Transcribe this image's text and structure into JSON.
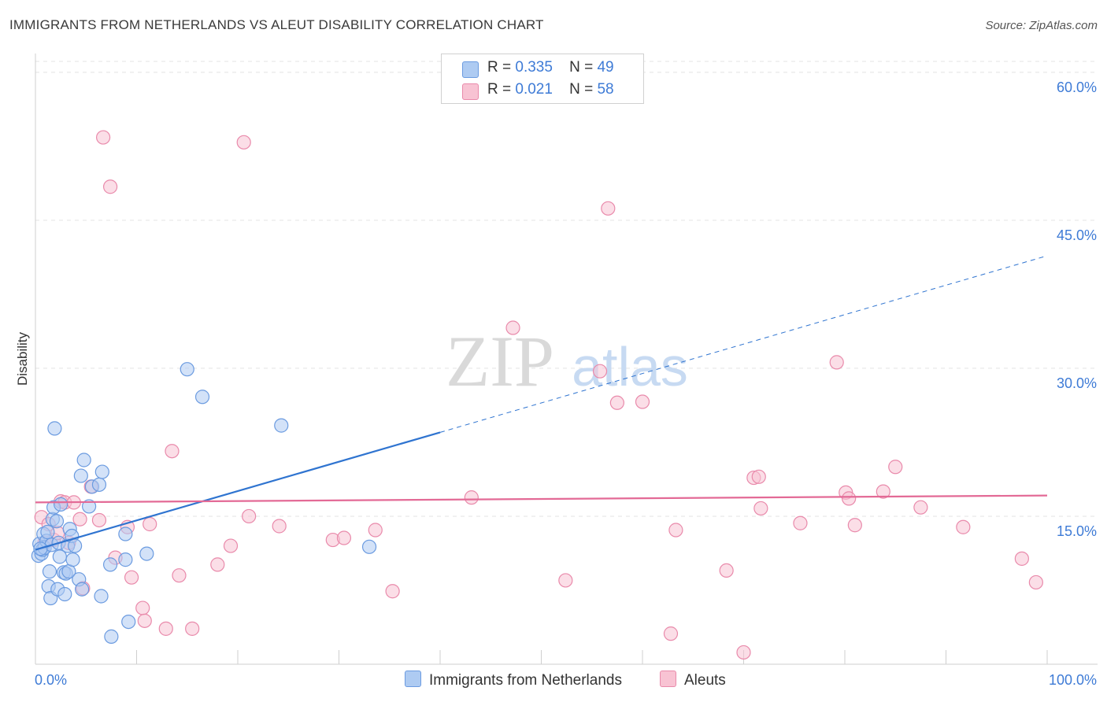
{
  "title": "IMMIGRANTS FROM NETHERLANDS VS ALEUT DISABILITY CORRELATION CHART",
  "source": "Source: ZipAtlas.com",
  "watermark": {
    "zip": "ZIP",
    "atlas": "atlas"
  },
  "legend": {
    "r_label": "R =",
    "n_label": "N =",
    "series1": {
      "r": "0.335",
      "n": "49"
    },
    "series2": {
      "r": "0.021",
      "n": "58"
    }
  },
  "colors": {
    "blue_fill": "#aecbf2",
    "blue_stroke": "#6b9be0",
    "blue_line": "#2f74d0",
    "pink_fill": "#f8c3d3",
    "pink_stroke": "#e98aab",
    "pink_line": "#e36a96",
    "axis_label": "#3e7bd6",
    "grid": "#e3e3e3"
  },
  "chart_data": {
    "type": "scatter",
    "title": "IMMIGRANTS FROM NETHERLANDS VS ALEUT DISABILITY CORRELATION CHART",
    "xlabel": "",
    "ylabel": "Disability",
    "xlim": [
      0,
      100
    ],
    "ylim": [
      0,
      61.9
    ],
    "x_tick_labels": [
      "0.0%",
      "100.0%"
    ],
    "y_ticks": [
      15,
      30,
      45,
      60
    ],
    "y_tick_labels": [
      "15.0%",
      "30.0%",
      "45.0%",
      "60.0%"
    ],
    "series": [
      {
        "name": "Immigrants from Netherlands",
        "r": 0.335,
        "n": 49,
        "trend": {
          "x0": 0,
          "y0": 11.6,
          "x1": 40,
          "y1": 23.5,
          "dash_x1": 100,
          "dash_y1": 41.4
        },
        "points": [
          [
            0.3,
            11.0
          ],
          [
            0.4,
            12.2
          ],
          [
            0.6,
            11.2
          ],
          [
            0.7,
            11.6
          ],
          [
            0.8,
            13.2
          ],
          [
            0.9,
            11.8
          ],
          [
            1.1,
            12.5
          ],
          [
            1.2,
            13.4
          ],
          [
            1.3,
            7.9
          ],
          [
            1.4,
            9.4
          ],
          [
            1.5,
            6.7
          ],
          [
            1.6,
            12.1
          ],
          [
            1.7,
            14.7
          ],
          [
            1.8,
            15.9
          ],
          [
            1.9,
            23.9
          ],
          [
            2.1,
            14.5
          ],
          [
            2.2,
            7.6
          ],
          [
            2.3,
            12.3
          ],
          [
            2.4,
            10.9
          ],
          [
            2.5,
            16.2
          ],
          [
            2.8,
            9.3
          ],
          [
            2.9,
            7.1
          ],
          [
            3.0,
            9.2
          ],
          [
            3.2,
            12.0
          ],
          [
            3.3,
            9.4
          ],
          [
            3.4,
            13.7
          ],
          [
            3.6,
            13.0
          ],
          [
            3.7,
            10.6
          ],
          [
            3.9,
            12.0
          ],
          [
            4.3,
            8.6
          ],
          [
            4.5,
            19.1
          ],
          [
            4.6,
            7.6
          ],
          [
            4.8,
            20.7
          ],
          [
            5.3,
            16.0
          ],
          [
            5.6,
            18.0
          ],
          [
            6.3,
            18.2
          ],
          [
            6.5,
            6.9
          ],
          [
            6.6,
            19.5
          ],
          [
            7.4,
            10.1
          ],
          [
            7.5,
            2.8
          ],
          [
            8.9,
            10.6
          ],
          [
            8.9,
            13.2
          ],
          [
            9.2,
            4.3
          ],
          [
            11.0,
            11.2
          ],
          [
            15.0,
            29.9
          ],
          [
            16.5,
            27.1
          ],
          [
            24.3,
            24.2
          ],
          [
            33.0,
            11.9
          ],
          [
            0.5,
            11.7
          ]
        ]
      },
      {
        "name": "Aleuts",
        "r": 0.021,
        "n": 58,
        "trend": {
          "x0": 0,
          "y0": 16.4,
          "x1": 100,
          "y1": 17.1
        },
        "points": [
          [
            0.6,
            14.9
          ],
          [
            0.9,
            12.3
          ],
          [
            1.3,
            14.2
          ],
          [
            1.8,
            12.6
          ],
          [
            2.2,
            13.3
          ],
          [
            2.5,
            16.5
          ],
          [
            2.9,
            16.4
          ],
          [
            3.3,
            12.3
          ],
          [
            3.8,
            16.4
          ],
          [
            4.4,
            14.7
          ],
          [
            4.7,
            7.7
          ],
          [
            5.5,
            18.0
          ],
          [
            6.3,
            14.6
          ],
          [
            6.7,
            53.4
          ],
          [
            7.4,
            48.4
          ],
          [
            7.9,
            10.8
          ],
          [
            9.1,
            13.9
          ],
          [
            9.5,
            8.8
          ],
          [
            10.6,
            5.7
          ],
          [
            10.8,
            4.4
          ],
          [
            11.3,
            14.2
          ],
          [
            12.9,
            3.6
          ],
          [
            13.5,
            21.6
          ],
          [
            14.2,
            9.0
          ],
          [
            15.5,
            3.6
          ],
          [
            18.0,
            10.1
          ],
          [
            19.3,
            12.0
          ],
          [
            20.6,
            52.9
          ],
          [
            21.1,
            15.0
          ],
          [
            24.1,
            14.0
          ],
          [
            29.4,
            12.6
          ],
          [
            30.5,
            12.8
          ],
          [
            33.6,
            13.6
          ],
          [
            35.3,
            7.4
          ],
          [
            43.1,
            16.9
          ],
          [
            47.2,
            34.1
          ],
          [
            52.4,
            8.5
          ],
          [
            55.8,
            29.7
          ],
          [
            56.6,
            46.2
          ],
          [
            57.5,
            26.5
          ],
          [
            60.0,
            26.6
          ],
          [
            62.8,
            3.1
          ],
          [
            63.3,
            13.6
          ],
          [
            68.3,
            9.5
          ],
          [
            70.0,
            1.2
          ],
          [
            71.0,
            18.9
          ],
          [
            71.5,
            19.0
          ],
          [
            71.7,
            15.8
          ],
          [
            75.6,
            14.3
          ],
          [
            79.2,
            30.6
          ],
          [
            80.1,
            17.4
          ],
          [
            80.4,
            16.8
          ],
          [
            81.0,
            14.1
          ],
          [
            83.8,
            17.5
          ],
          [
            85.0,
            20.0
          ],
          [
            87.5,
            15.9
          ],
          [
            91.7,
            13.9
          ],
          [
            97.5,
            10.7
          ]
        ]
      }
    ]
  },
  "extra_point": {
    "x": 98.9,
    "y": 8.3
  }
}
